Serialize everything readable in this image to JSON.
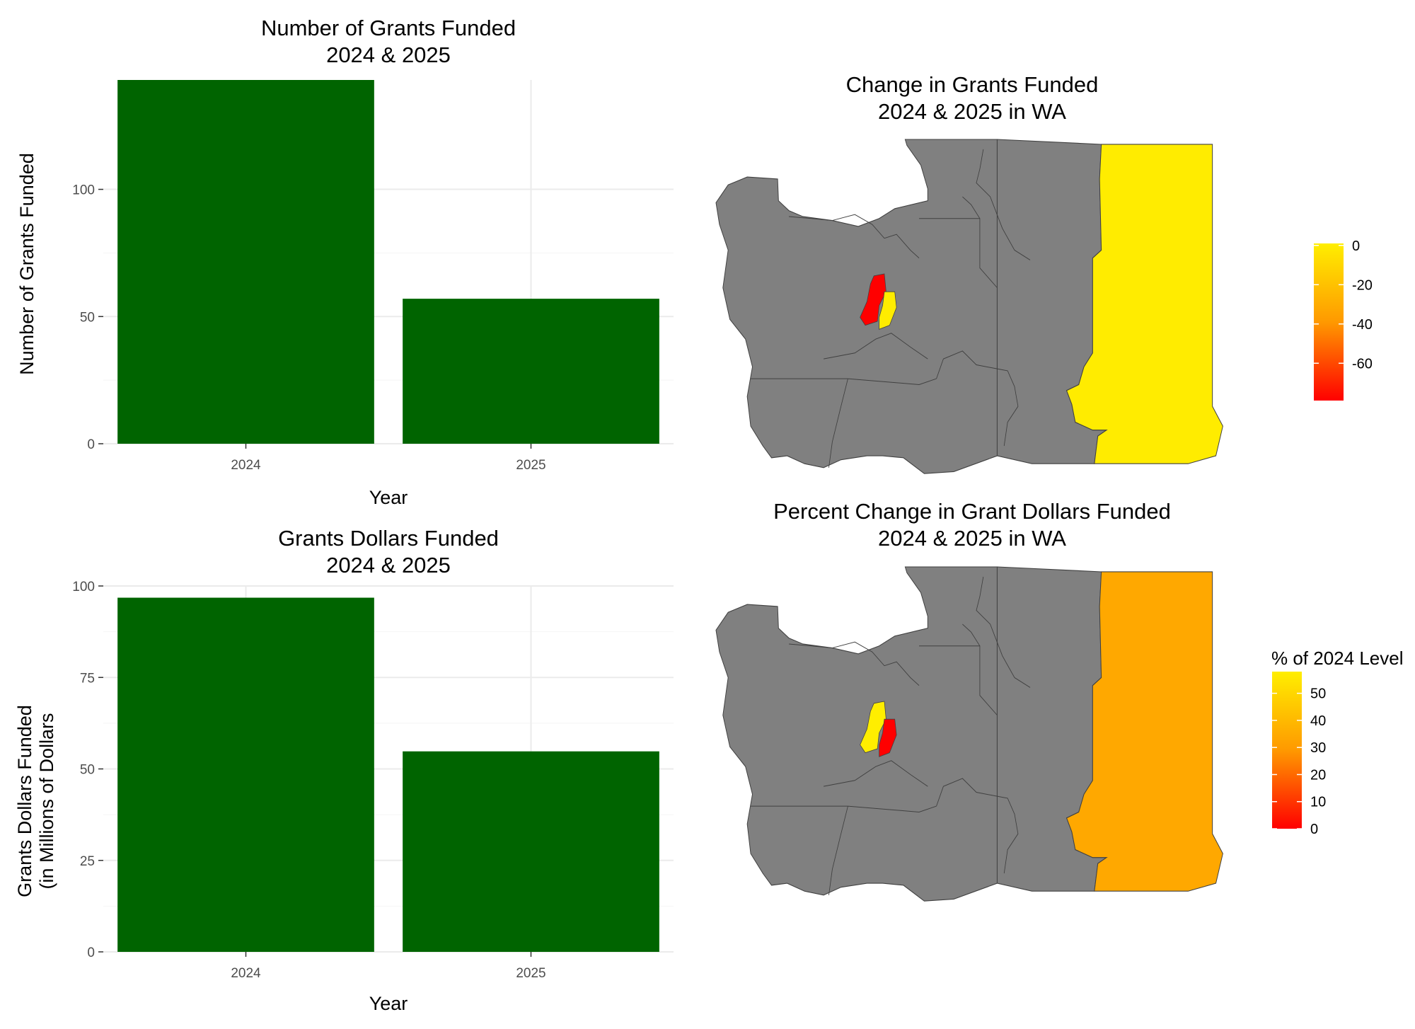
{
  "colors": {
    "bar": "#006400",
    "map_na": "#808080",
    "map_border": "#404040",
    "grad_low": "#ff0000",
    "grad_mid": "#ff9900",
    "grad_high": "#ffee00"
  },
  "chart_data": [
    {
      "type": "bar",
      "title_lines": [
        "Number of Grants Funded",
        "2024 & 2025"
      ],
      "xlabel": "Year",
      "ylabel_lines": [
        "Number of Grants Funded"
      ],
      "categories": [
        "2024",
        "2025"
      ],
      "values": [
        143,
        57
      ],
      "ylim": [
        0,
        143
      ],
      "yticks": [
        0,
        50,
        100
      ],
      "grid": true
    },
    {
      "type": "bar",
      "title_lines": [
        "Grants Dollars Funded",
        "2024 & 2025"
      ],
      "xlabel": "Year",
      "ylabel_lines": [
        "Grants Dollars Funded",
        "(in Millions of Dollars"
      ],
      "categories": [
        "2024",
        "2025"
      ],
      "values": [
        96.8,
        54.8
      ],
      "ylim": [
        0,
        100
      ],
      "yticks": [
        0,
        25,
        50,
        75,
        100
      ],
      "grid": true
    },
    {
      "type": "choropleth",
      "title_lines": [
        "Change in Grants Funded",
        "2024 & 2025 in WA"
      ],
      "legend_title": "",
      "legend_ticks": [
        0,
        -20,
        -40,
        -60
      ],
      "legend_range": [
        -79,
        1
      ],
      "regions": [
        {
          "region": "east",
          "value": 0
        },
        {
          "region": "puget-left",
          "value": -79
        },
        {
          "region": "puget-right",
          "value": 0
        }
      ]
    },
    {
      "type": "choropleth",
      "title_lines": [
        "Percent Change in Grant Dollars Funded",
        "2024 & 2025 in WA"
      ],
      "legend_title": "% of 2024 Level",
      "legend_ticks": [
        50,
        40,
        30,
        20,
        10,
        0
      ],
      "legend_range": [
        0,
        58
      ],
      "regions": [
        {
          "region": "east",
          "value": 34
        },
        {
          "region": "puget-left",
          "value": 58
        },
        {
          "region": "puget-right",
          "value": 0
        }
      ]
    }
  ]
}
